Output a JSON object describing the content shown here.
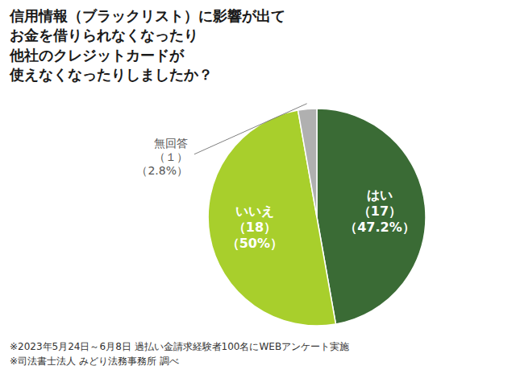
{
  "chart_data": {
    "type": "pie",
    "title": "信用情報（ブラックリスト）に影響が出て\nお金を借りられなくなったり\n他社のクレジットカードが\n使えなくなったりしましたか？",
    "categories": [
      "はい",
      "いいえ",
      "無回答"
    ],
    "values": [
      17,
      18,
      1
    ],
    "value_labels": [
      "（17）",
      "（18）",
      "（１）"
    ],
    "shares": [
      47.2,
      50,
      2.8
    ],
    "share_labels": [
      "（47.2%）",
      "（50%）",
      "（2.8%）"
    ],
    "colors": [
      "#3a6b35",
      "#a8cf2c",
      "#b0b0b0"
    ],
    "data_labels": true,
    "footnotes": [
      "※2023年5月24日～6月8日 過払い金請求経験者100名にWEBアンケート実施",
      "※司法書士法人 みどり法務事務所 調べ"
    ]
  }
}
